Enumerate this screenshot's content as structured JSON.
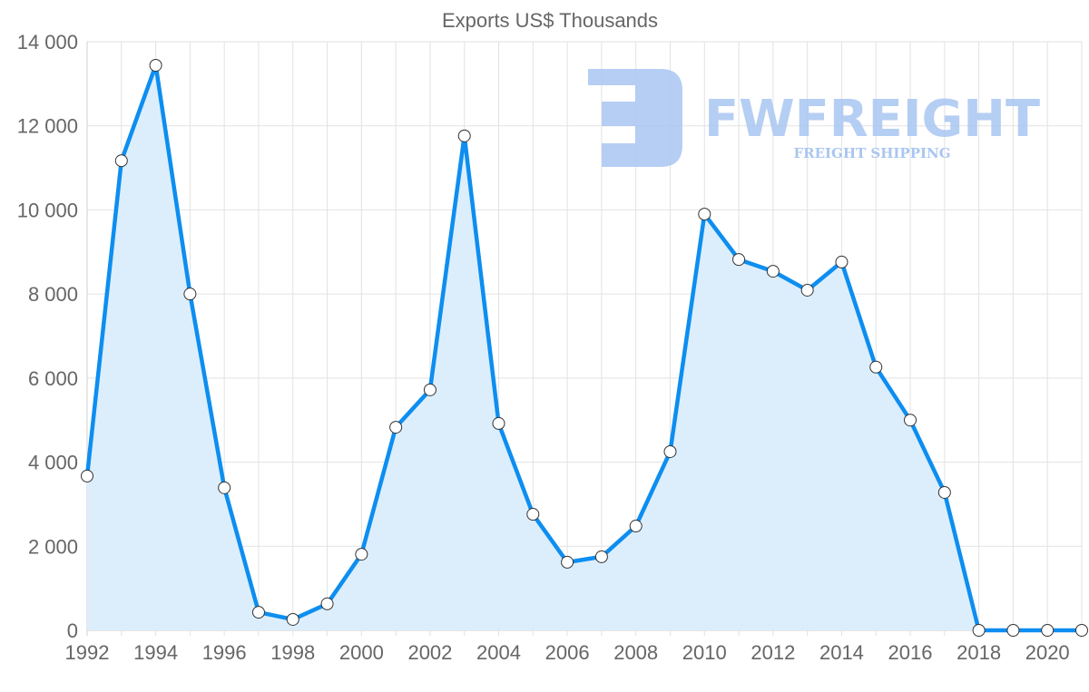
{
  "chart_data": {
    "type": "line",
    "title": "Exports US$ Thousands",
    "xlabel": "",
    "ylabel": "",
    "x": [
      1992,
      1993,
      1994,
      1995,
      1996,
      1997,
      1998,
      1999,
      2000,
      2001,
      2002,
      2003,
      2004,
      2005,
      2006,
      2007,
      2008,
      2009,
      2010,
      2011,
      2012,
      2013,
      2014,
      2015,
      2016,
      2017,
      2018,
      2019,
      2020,
      2021
    ],
    "series": [
      {
        "name": "Exports US$ Thousands",
        "values": [
          3670,
          11170,
          13440,
          8000,
          3390,
          430,
          260,
          630,
          1810,
          4830,
          5720,
          11760,
          4920,
          2760,
          1620,
          1750,
          2480,
          4250,
          9900,
          8820,
          8540,
          8090,
          8760,
          6260,
          5000,
          3280,
          0,
          0,
          0,
          0
        ]
      }
    ],
    "ylim": [
      0,
      14000
    ],
    "xlim": [
      1992,
      2021
    ],
    "yticks": [
      0,
      2000,
      4000,
      6000,
      8000,
      10000,
      12000,
      14000
    ],
    "ytick_labels": [
      "0",
      "2 000",
      "4 000",
      "6 000",
      "8 000",
      "10 000",
      "12 000",
      "14 000"
    ],
    "xtick_labels": [
      "1992",
      "1994",
      "1996",
      "1998",
      "2000",
      "2002",
      "2004",
      "2006",
      "2008",
      "2010",
      "2012",
      "2014",
      "2016",
      "2018",
      "2020"
    ],
    "grid": true,
    "fill": true,
    "colors": {
      "line": "#0d8ef0",
      "fill": "#daedfc",
      "grid": "#e2e2e2",
      "point_fill": "#ffffff",
      "point_stroke": "#333333"
    }
  },
  "watermark": {
    "brand": "FWFREIGHT",
    "tagline": "FREIGHT SHIPPING"
  }
}
